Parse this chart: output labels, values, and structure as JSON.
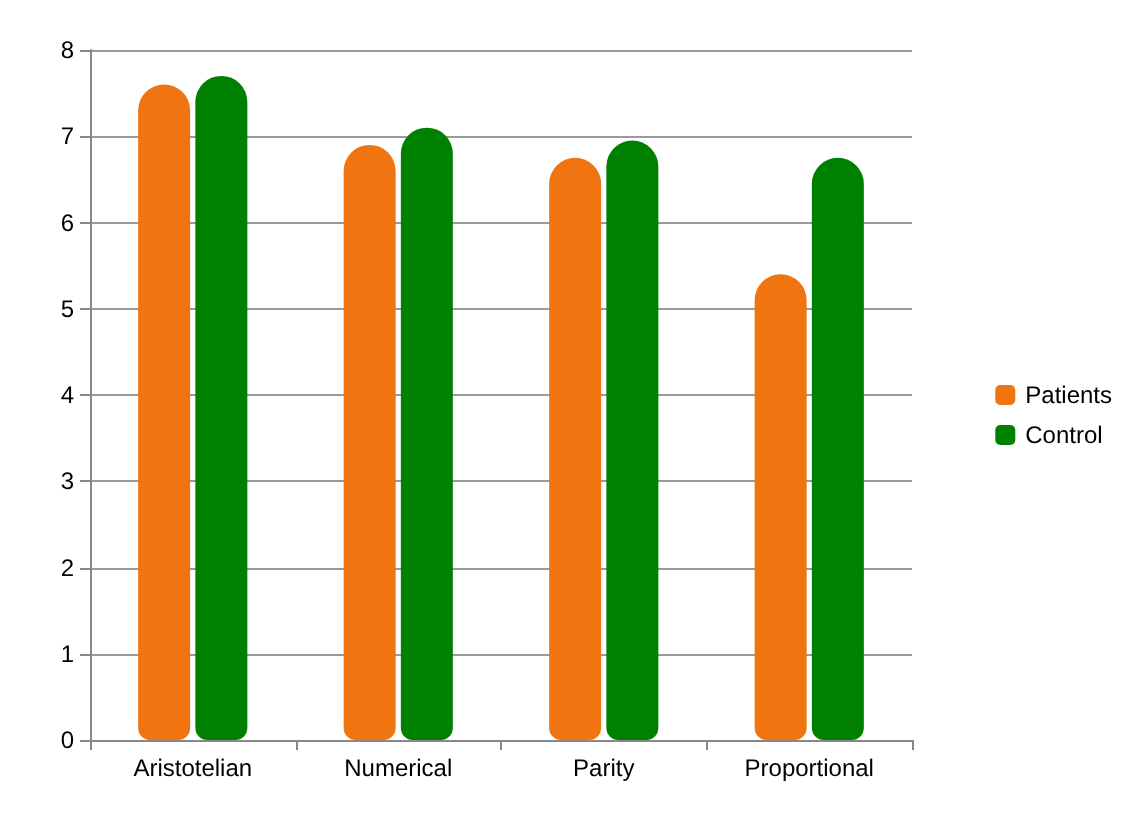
{
  "chart_data": {
    "type": "bar",
    "categories": [
      "Aristotelian",
      "Numerical",
      "Parity",
      "Proportional"
    ],
    "series": [
      {
        "name": "Patients",
        "color": "#f07510",
        "values": [
          7.6,
          6.9,
          6.75,
          5.4
        ]
      },
      {
        "name": "Control",
        "color": "#008000",
        "values": [
          7.7,
          7.1,
          6.95,
          6.75
        ]
      }
    ],
    "ylim": [
      0,
      8
    ],
    "yticks": [
      0,
      1,
      2,
      3,
      4,
      5,
      6,
      7,
      8
    ],
    "grid": "y",
    "legend": "right"
  }
}
